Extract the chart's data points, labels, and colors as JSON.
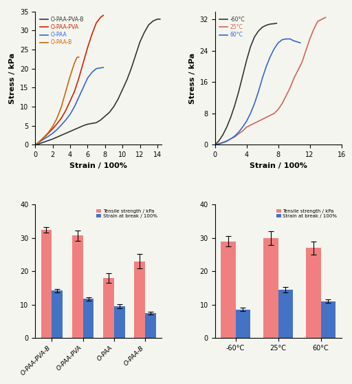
{
  "top_left": {
    "title": "",
    "xlabel": "Strain / 100%",
    "ylabel": "Stress / kPa",
    "xlim": [
      0,
      14.5
    ],
    "ylim": [
      0,
      35
    ],
    "yticks": [
      0,
      5,
      10,
      15,
      20,
      25,
      30,
      35
    ],
    "xticks": [
      0,
      2,
      4,
      6,
      8,
      10,
      12,
      14
    ],
    "curves": [
      {
        "label": "O-PAA-PVA-B",
        "color": "#333333",
        "x": [
          0,
          0.5,
          1,
          1.5,
          2,
          2.5,
          3,
          3.5,
          4,
          4.5,
          5,
          5.5,
          6,
          6.5,
          7,
          7.5,
          8,
          8.5,
          9,
          9.5,
          10,
          10.5,
          11,
          11.5,
          12,
          12.5,
          13,
          13.5,
          14,
          14.3
        ],
        "y": [
          0,
          0.3,
          0.7,
          1.1,
          1.5,
          2.0,
          2.5,
          3.0,
          3.5,
          4.0,
          4.5,
          5.0,
          5.4,
          5.6,
          5.8,
          6.5,
          7.5,
          8.5,
          10.0,
          12.0,
          14.5,
          17.0,
          20.0,
          23.5,
          27.0,
          29.5,
          31.5,
          32.5,
          33.0,
          33.0
        ]
      },
      {
        "label": "O-PAA-PVA",
        "color": "#cc2200",
        "x": [
          0,
          0.3,
          0.6,
          0.9,
          1.2,
          1.5,
          2.0,
          2.5,
          3.0,
          3.5,
          4.0,
          4.5,
          5.0,
          5.5,
          6.0,
          6.5,
          7.0,
          7.5,
          7.8
        ],
        "y": [
          0,
          0.5,
          1.0,
          1.7,
          2.3,
          3.0,
          4.2,
          5.5,
          7.0,
          9.0,
          11.5,
          14.0,
          17.5,
          21.5,
          25.5,
          29.0,
          32.0,
          33.5,
          34.0
        ]
      },
      {
        "label": "O-PAA",
        "color": "#3366cc",
        "x": [
          0,
          0.3,
          0.6,
          1.0,
          1.5,
          2.0,
          2.5,
          3.0,
          3.5,
          4.0,
          4.5,
          5.0,
          5.5,
          6.0,
          6.5,
          7.0,
          7.5,
          7.8
        ],
        "y": [
          0,
          0.4,
          0.9,
          1.5,
          2.2,
          3.0,
          4.0,
          5.2,
          6.5,
          8.0,
          10.0,
          12.5,
          15.0,
          17.5,
          19.0,
          20.0,
          20.2,
          20.3
        ]
      },
      {
        "label": "O-PAA-B",
        "color": "#cc6600",
        "x": [
          0,
          0.3,
          0.6,
          1.0,
          1.5,
          2.0,
          2.5,
          3.0,
          3.5,
          4.0,
          4.5,
          4.8,
          5.0
        ],
        "y": [
          0,
          0.5,
          1.1,
          2.0,
          3.2,
          4.8,
          7.0,
          10.0,
          14.0,
          18.0,
          21.5,
          23.0,
          23.0
        ]
      }
    ]
  },
  "top_right": {
    "title": "",
    "xlabel": "Strain / 100%",
    "ylabel": "Stress / kPa",
    "xlim": [
      0,
      16
    ],
    "ylim": [
      0,
      34
    ],
    "yticks": [
      0,
      8,
      16,
      24,
      32
    ],
    "xticks": [
      0,
      4,
      8,
      12,
      16
    ],
    "curves": [
      {
        "label": "-60°C",
        "color": "#333333",
        "x": [
          0,
          0.5,
          1.0,
          1.5,
          2.0,
          2.5,
          3.0,
          3.5,
          4.0,
          4.5,
          5.0,
          5.5,
          6.0,
          6.5,
          7.0,
          7.5,
          7.8
        ],
        "y": [
          0,
          1.0,
          2.5,
          4.5,
          7.0,
          10.0,
          13.5,
          17.5,
          21.5,
          25.0,
          27.5,
          29.0,
          30.0,
          30.5,
          30.8,
          30.9,
          31.0
        ]
      },
      {
        "label": "25°C",
        "color": "#cc6655",
        "x": [
          0,
          0.5,
          1.0,
          1.5,
          2.0,
          2.5,
          3.0,
          3.5,
          4.0,
          4.5,
          5.0,
          5.5,
          6.0,
          6.5,
          7.0,
          7.5,
          8.0,
          8.5,
          9.0,
          9.5,
          10.0,
          10.5,
          11.0,
          11.5,
          12.0,
          12.5,
          13.0,
          13.5,
          14.0
        ],
        "y": [
          0,
          0.3,
          0.6,
          1.0,
          1.5,
          2.0,
          2.8,
          3.5,
          4.5,
          5.0,
          5.5,
          6.0,
          6.5,
          7.0,
          7.5,
          8.0,
          9.0,
          10.5,
          12.5,
          14.5,
          17.0,
          19.0,
          21.0,
          24.0,
          27.0,
          29.5,
          31.5,
          32.0,
          32.5
        ]
      },
      {
        "label": "60°C",
        "color": "#3366cc",
        "x": [
          0,
          0.5,
          1.0,
          1.5,
          2.0,
          2.5,
          3.0,
          3.5,
          4.0,
          4.5,
          5.0,
          5.5,
          6.0,
          6.5,
          7.0,
          7.5,
          8.0,
          8.5,
          9.0,
          9.5,
          10.0,
          10.5,
          10.8
        ],
        "y": [
          0,
          0.2,
          0.5,
          0.9,
          1.5,
          2.2,
          3.2,
          4.5,
          6.0,
          8.0,
          10.5,
          13.5,
          17.0,
          20.0,
          22.5,
          24.5,
          26.0,
          26.8,
          27.0,
          27.0,
          26.5,
          26.2,
          26.0
        ]
      }
    ]
  },
  "bottom_left": {
    "categories": [
      "O-PAA-PVA-B",
      "O-PAA-PVA",
      "O-PAA",
      "O-PAA-B"
    ],
    "tensile_strength": [
      32.5,
      30.7,
      18.0,
      23.0
    ],
    "tensile_err": [
      0.8,
      1.5,
      1.5,
      2.2
    ],
    "strain_break": [
      14.2,
      11.7,
      9.5,
      7.5
    ],
    "strain_err": [
      0.5,
      0.5,
      0.7,
      0.4
    ],
    "ylim": [
      0,
      40
    ],
    "yticks": [
      0,
      10,
      20,
      30,
      40
    ],
    "bar_color_tensile": "#f08080",
    "bar_color_strain": "#4472c4",
    "legend_tensile": "Tensile strength / kPa",
    "legend_strain": "Strain at break / 100%"
  },
  "bottom_right": {
    "categories": [
      "-60°C",
      "25°C",
      "60°C"
    ],
    "tensile_strength": [
      29.0,
      30.0,
      27.0
    ],
    "tensile_err": [
      1.5,
      2.0,
      2.0
    ],
    "strain_break": [
      8.5,
      14.5,
      11.0
    ],
    "strain_err": [
      0.5,
      0.8,
      0.5
    ],
    "ylim": [
      0,
      40
    ],
    "yticks": [
      0,
      10,
      20,
      30,
      40
    ],
    "bar_color_tensile": "#f08080",
    "bar_color_strain": "#4472c4",
    "legend_tensile": "Tensile strength / kPa",
    "legend_strain": "Strain at break / 100%"
  }
}
